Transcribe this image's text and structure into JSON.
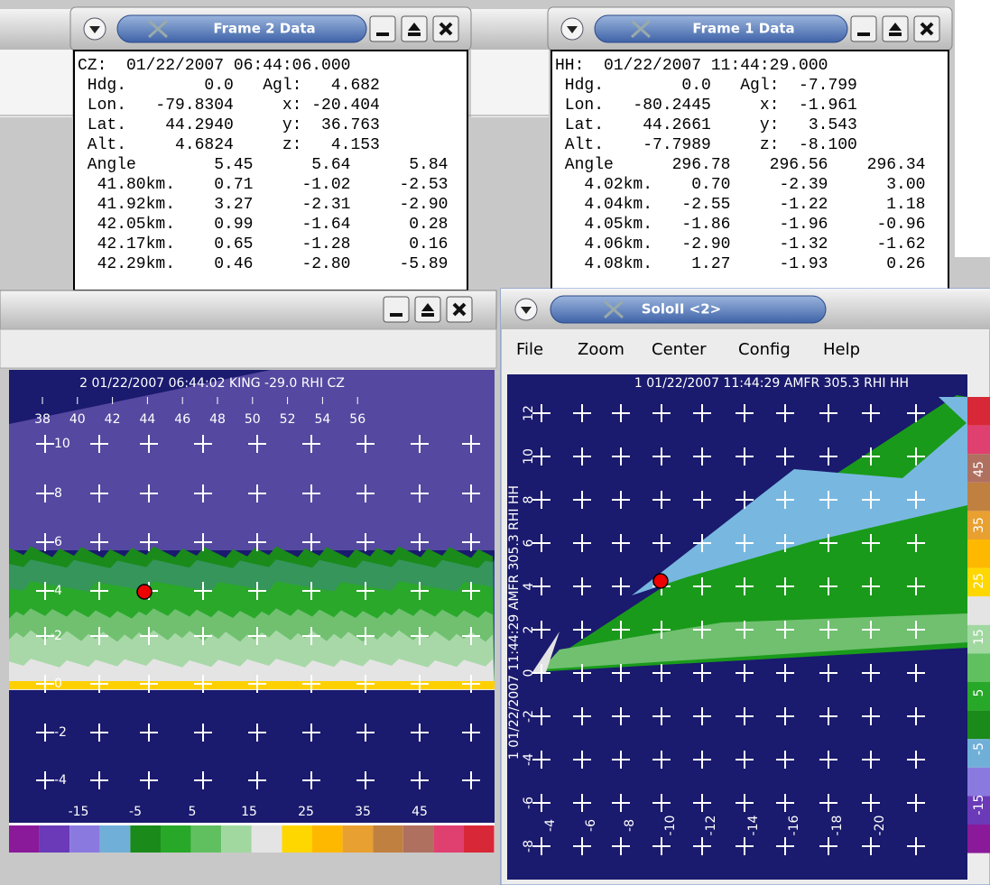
{
  "frame2": {
    "title": "Frame 2 Data",
    "lines": [
      "CZ:  01/22/2007 06:44:06.000",
      " Hdg.        0.0   Agl:   4.682",
      " Lon.   -79.8304     x: -20.404",
      " Lat.    44.2940     y:  36.763",
      " Alt.     4.6824     z:   4.153",
      " Angle        5.45      5.64      5.84",
      "  41.80km.    0.71     -1.02     -2.53",
      "  41.92km.    3.27     -2.31     -2.90",
      "  42.05km.    0.99     -1.64      0.28",
      "  42.17km.    0.65     -1.28      0.16",
      "  42.29km.    0.46     -2.80     -5.89"
    ]
  },
  "frame1": {
    "title": "Frame 1 Data",
    "lines": [
      "HH:  01/22/2007 11:44:29.000",
      " Hdg.        0.0   Agl:  -7.799",
      " Lon.   -80.2445     x:  -1.961",
      " Lat.    44.2661     y:   3.543",
      " Alt.    -7.7989     z:  -8.100",
      " Angle      296.78    296.56    296.34",
      "   4.02km.    0.70     -2.39      3.00",
      "   4.04km.   -2.55     -1.22      1.18",
      "   4.05km.   -1.86     -1.96     -0.96",
      "   4.06km.   -2.90     -1.32     -1.62",
      "   4.08km.    1.27     -1.93      0.26"
    ]
  },
  "left_window": {
    "plot_title": "2 01/22/2007 06:44:02 KING -29.0 RHI CZ",
    "x_labels": [
      "38",
      "40",
      "42",
      "44",
      "46",
      "48",
      "50",
      "52",
      "54",
      "56"
    ],
    "y_labels": [
      "10",
      "8",
      "6",
      "4",
      "2",
      "0",
      "-2",
      "-4"
    ],
    "colorbar_labels": [
      "-15",
      "-5",
      "5",
      "15",
      "25",
      "35",
      "45"
    ]
  },
  "right_window": {
    "title": "SoloII <2>",
    "menu": [
      "File",
      "Zoom",
      "Center",
      "Config",
      "Help"
    ],
    "plot_title": "1 01/22/2007 11:44:29 AMFR 305.3 RHI HH",
    "axis_title": "1 01/22/2007 11:44:29 AMFR 305.3 RHI HH",
    "y_labels": [
      "12",
      "10",
      "8",
      "6",
      "4",
      "2",
      "0",
      "-2",
      "-4",
      "-6",
      "-8"
    ],
    "x_labels": [
      "-4",
      "-6",
      "-8",
      "-10",
      "-12",
      "-14",
      "-16",
      "-18",
      "-20"
    ],
    "colorbar_labels": [
      "45",
      "35",
      "25",
      "15",
      "5",
      "-5",
      "-15"
    ]
  }
}
